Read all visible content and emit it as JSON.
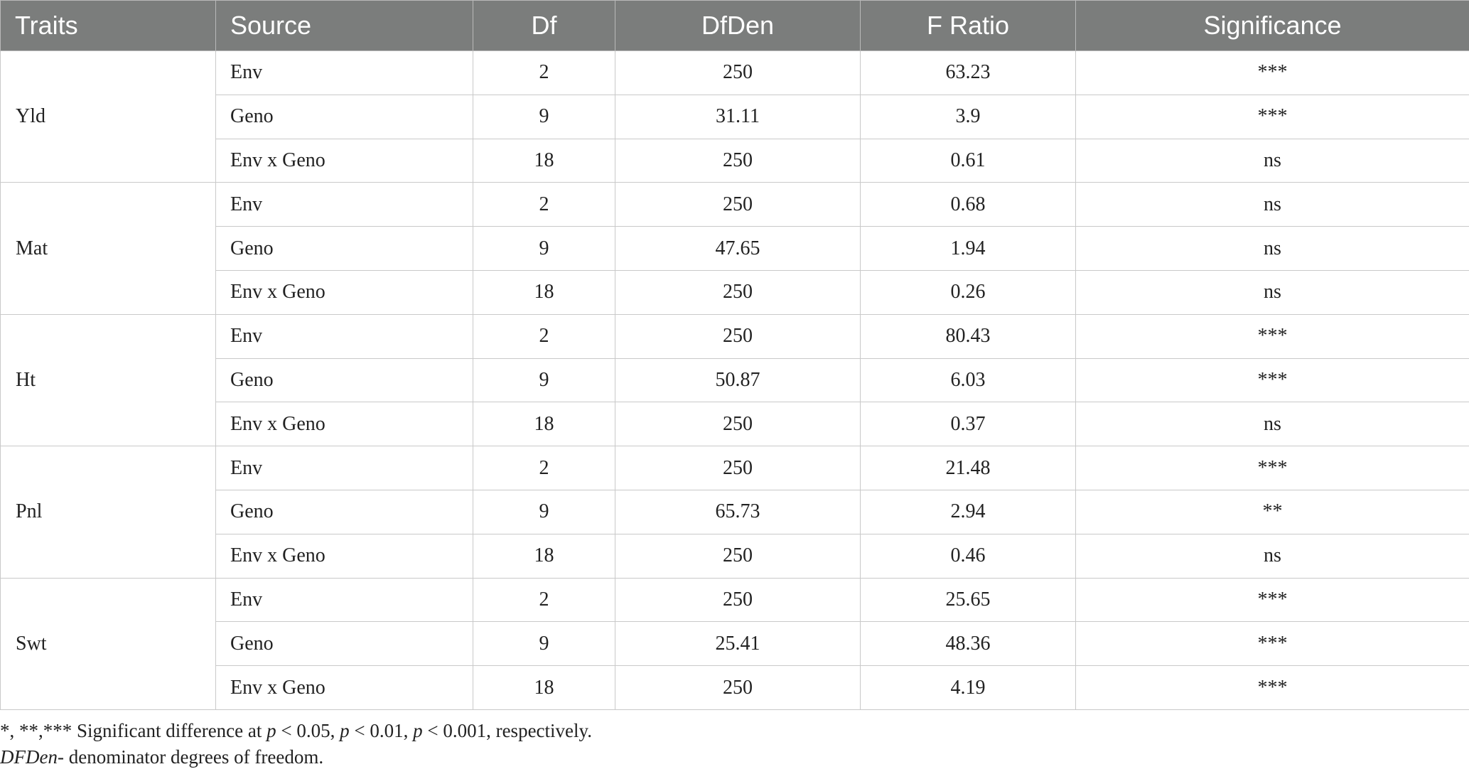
{
  "headers": [
    "Traits",
    "Source",
    "Df",
    "DfDen",
    "F Ratio",
    "Significance"
  ],
  "groups": [
    {
      "trait": "Yld",
      "rows": [
        {
          "source": "Env",
          "df": "2",
          "dfden": "250",
          "f": "63.23",
          "sig": "***"
        },
        {
          "source": "Geno",
          "df": "9",
          "dfden": "31.11",
          "f": "3.9",
          "sig": "***"
        },
        {
          "source": "Env x Geno",
          "df": "18",
          "dfden": "250",
          "f": "0.61",
          "sig": "ns"
        }
      ]
    },
    {
      "trait": "Mat",
      "rows": [
        {
          "source": "Env",
          "df": "2",
          "dfden": "250",
          "f": "0.68",
          "sig": "ns"
        },
        {
          "source": "Geno",
          "df": "9",
          "dfden": "47.65",
          "f": "1.94",
          "sig": "ns"
        },
        {
          "source": "Env x Geno",
          "df": "18",
          "dfden": "250",
          "f": "0.26",
          "sig": "ns"
        }
      ]
    },
    {
      "trait": "Ht",
      "rows": [
        {
          "source": "Env",
          "df": "2",
          "dfden": "250",
          "f": "80.43",
          "sig": "***"
        },
        {
          "source": "Geno",
          "df": "9",
          "dfden": "50.87",
          "f": "6.03",
          "sig": "***"
        },
        {
          "source": "Env x Geno",
          "df": "18",
          "dfden": "250",
          "f": "0.37",
          "sig": "ns"
        }
      ]
    },
    {
      "trait": "Pnl",
      "rows": [
        {
          "source": "Env",
          "df": "2",
          "dfden": "250",
          "f": "21.48",
          "sig": "***"
        },
        {
          "source": "Geno",
          "df": "9",
          "dfden": "65.73",
          "f": "2.94",
          "sig": "**"
        },
        {
          "source": "Env x Geno",
          "df": "18",
          "dfden": "250",
          "f": "0.46",
          "sig": "ns"
        }
      ]
    },
    {
      "trait": "Swt",
      "rows": [
        {
          "source": "Env",
          "df": "2",
          "dfden": "250",
          "f": "25.65",
          "sig": "***"
        },
        {
          "source": "Geno",
          "df": "9",
          "dfden": "25.41",
          "f": "48.36",
          "sig": "***"
        },
        {
          "source": "Env x Geno",
          "df": "18",
          "dfden": "250",
          "f": "4.19",
          "sig": "***"
        }
      ]
    }
  ],
  "footnotes": {
    "sig_marks": "*, **,***",
    "sig_t1": " Significant difference at ",
    "p1": "p",
    "sig_t2": " < 0.05, ",
    "p2": "p",
    "sig_t3": " < 0.01, ",
    "p3": "p",
    "sig_t4": " < 0.001, respectively.",
    "abbr": "DFDen",
    "abbr_text": "- denominator degrees of freedom."
  }
}
